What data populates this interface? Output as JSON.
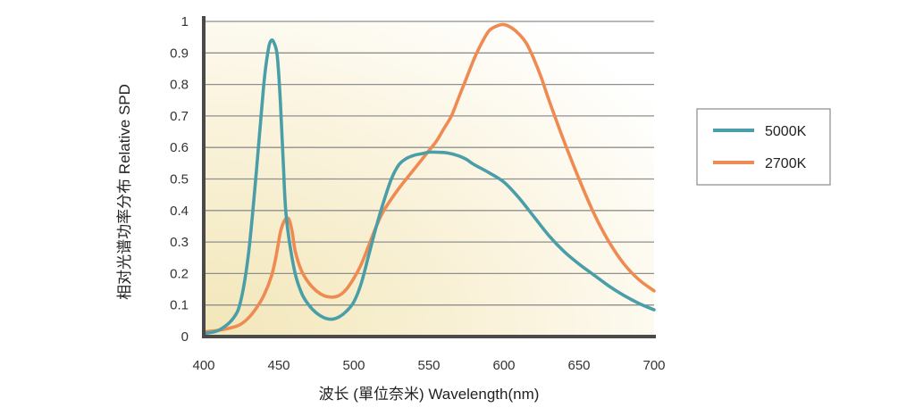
{
  "chart_data": {
    "type": "line",
    "title": "",
    "xlabel": "波长 (單位奈米)  Wavelength(nm)",
    "ylabel": "相对光谱功率分布   Relative SPD",
    "xlim": [
      400,
      700
    ],
    "ylim": [
      0,
      1
    ],
    "xticks": [
      "400",
      "450",
      "500",
      "550",
      "600",
      "650",
      "700"
    ],
    "yticks": [
      "0",
      "0.1",
      "0.2",
      "0.3",
      "0.4",
      "0.5",
      "0.6",
      "0.7",
      "0.8",
      "0.9",
      "1"
    ],
    "grid": "horizontal",
    "legend_position": "right",
    "series": [
      {
        "name": "5000K",
        "color": "#4a9ea8",
        "x": [
          400,
          410,
          420,
          425,
          430,
          435,
          440,
          443,
          445,
          447,
          449,
          451,
          453,
          455,
          460,
          465,
          470,
          475,
          480,
          485,
          490,
          495,
          500,
          505,
          510,
          515,
          520,
          525,
          530,
          535,
          540,
          545,
          550,
          555,
          560,
          565,
          570,
          575,
          580,
          590,
          600,
          610,
          620,
          630,
          640,
          650,
          660,
          670,
          680,
          690,
          700
        ],
        "y": [
          0.01,
          0.02,
          0.06,
          0.12,
          0.27,
          0.52,
          0.8,
          0.91,
          0.94,
          0.93,
          0.89,
          0.75,
          0.55,
          0.38,
          0.22,
          0.14,
          0.1,
          0.075,
          0.06,
          0.055,
          0.062,
          0.08,
          0.11,
          0.17,
          0.26,
          0.35,
          0.43,
          0.5,
          0.545,
          0.565,
          0.575,
          0.58,
          0.585,
          0.585,
          0.584,
          0.58,
          0.573,
          0.562,
          0.546,
          0.52,
          0.49,
          0.44,
          0.38,
          0.32,
          0.27,
          0.23,
          0.195,
          0.16,
          0.13,
          0.105,
          0.085
        ]
      },
      {
        "name": "2700K",
        "color": "#ee8a52",
        "x": [
          400,
          410,
          420,
          425,
          430,
          435,
          440,
          445,
          448,
          451,
          453,
          455,
          457,
          459,
          461,
          465,
          470,
          475,
          480,
          485,
          490,
          495,
          500,
          505,
          510,
          515,
          520,
          530,
          540,
          545,
          550,
          555,
          560,
          565,
          570,
          575,
          580,
          585,
          590,
          595,
          600,
          605,
          610,
          615,
          620,
          625,
          630,
          640,
          650,
          660,
          670,
          680,
          690,
          700
        ],
        "y": [
          0.015,
          0.02,
          0.03,
          0.04,
          0.06,
          0.09,
          0.13,
          0.19,
          0.25,
          0.33,
          0.36,
          0.375,
          0.37,
          0.33,
          0.27,
          0.21,
          0.17,
          0.145,
          0.13,
          0.125,
          0.13,
          0.15,
          0.185,
          0.23,
          0.29,
          0.35,
          0.4,
          0.47,
          0.53,
          0.56,
          0.59,
          0.62,
          0.66,
          0.7,
          0.76,
          0.82,
          0.88,
          0.93,
          0.97,
          0.985,
          0.99,
          0.98,
          0.96,
          0.93,
          0.88,
          0.82,
          0.75,
          0.62,
          0.5,
          0.39,
          0.3,
          0.23,
          0.18,
          0.145
        ]
      }
    ]
  }
}
